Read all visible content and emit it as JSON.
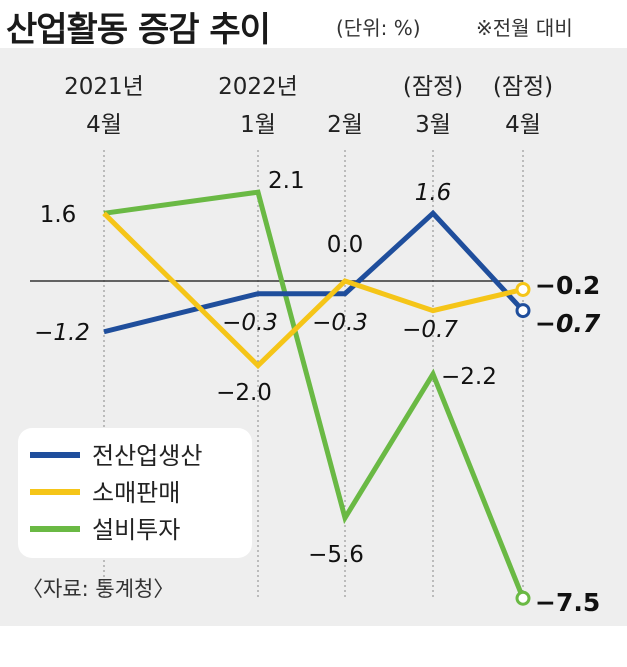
{
  "header": {
    "title": "산업활동 증감 추이",
    "unit": "(단위: %)",
    "basis": "※전월 대비"
  },
  "source": "〈자료: 통계청〉",
  "chart_data": {
    "type": "line",
    "title": "산업활동 증감 추이",
    "unit": "%",
    "categories": [
      {
        "top": "2021년",
        "bottom": "4월"
      },
      {
        "top": "2022년",
        "bottom": "1월"
      },
      {
        "top": "",
        "bottom": "2월"
      },
      {
        "top": "(잠정)",
        "bottom": "3월"
      },
      {
        "top": "(잠정)",
        "bottom": "4월"
      }
    ],
    "ylim": [
      -7.5,
      2.1
    ],
    "grid": "vertical dotted",
    "legend_position": "bottom-left",
    "series": [
      {
        "name": "전산업생산",
        "color": "#1f4e9c",
        "values": [
          -1.2,
          -0.3,
          -0.3,
          1.6,
          -0.7
        ],
        "labels": [
          "−1.2",
          "−0.3",
          "−0.3",
          "1.6",
          "−0.7"
        ]
      },
      {
        "name": "소매판매",
        "color": "#f5c518",
        "values": [
          1.6,
          -2.0,
          0.0,
          -0.7,
          -0.2
        ],
        "labels": [
          "1.6",
          "−2.0",
          "0.0",
          "−0.7",
          "−0.2"
        ]
      },
      {
        "name": "설비투자",
        "color": "#6ab944",
        "values": [
          1.6,
          2.1,
          -5.6,
          -2.2,
          -7.5
        ],
        "labels": [
          "",
          "2.1",
          "−5.6",
          "−2.2",
          "−7.5"
        ]
      }
    ]
  }
}
